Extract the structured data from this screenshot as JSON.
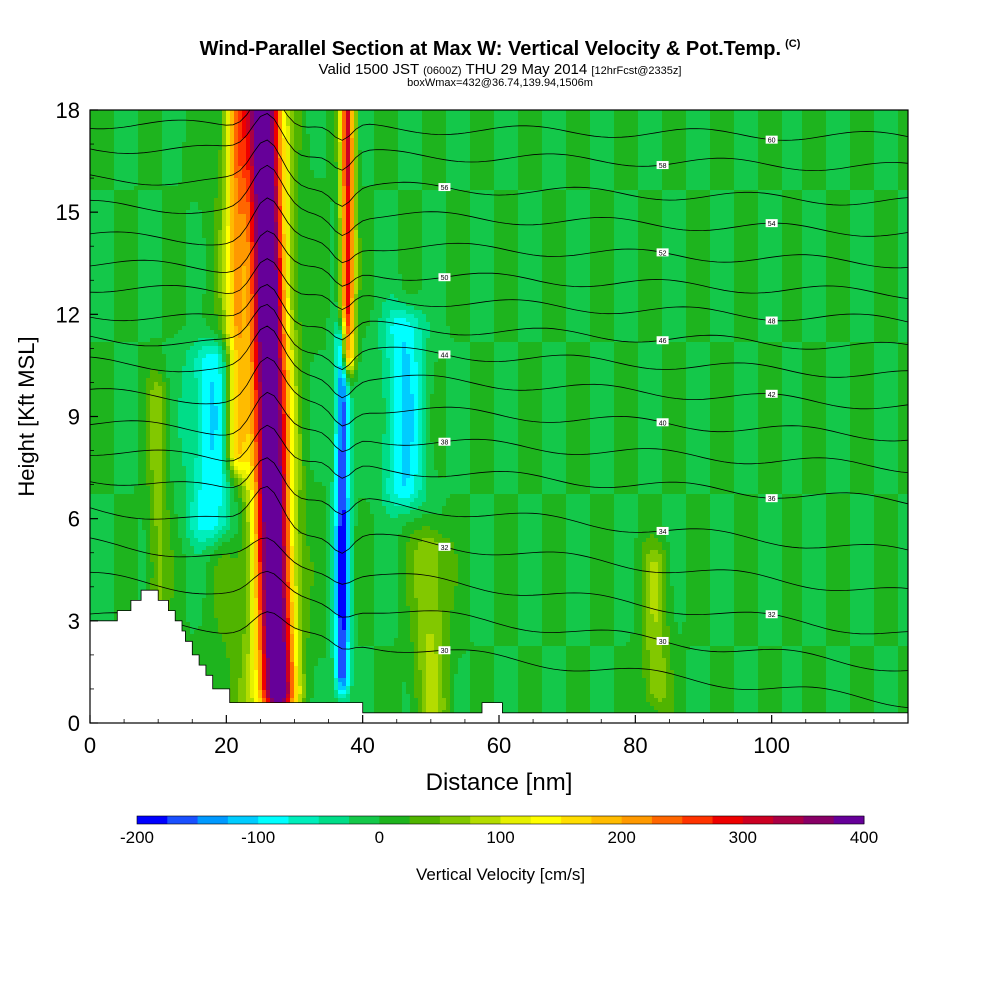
{
  "title": {
    "main": "Wind-Parallel Section at Max W: Vertical Velocity & Pot.Temp.",
    "copyright": "(C)",
    "valid_prefix": "Valid 1500 JST",
    "valid_z": "(0600Z)",
    "valid_date": "THU 29 May 2014",
    "forecast": "[12hrFcst@2335z]",
    "box_info": "boxWmax=432@36.74,139.94,1506m"
  },
  "chart_data": {
    "type": "heatmap",
    "xlabel": "Distance [nm]",
    "ylabel": "Height [Kft MSL]",
    "xlim": [
      0,
      120
    ],
    "ylim": [
      0,
      18
    ],
    "xticks": [
      0,
      20,
      40,
      60,
      80,
      100
    ],
    "yticks": [
      0,
      3,
      6,
      9,
      12,
      15,
      18
    ],
    "grid": false,
    "colorbar": {
      "label": "Vertical Velocity [cm/s]",
      "placement": "bottom",
      "ticks": [
        -200,
        -100,
        0,
        100,
        200,
        300,
        400
      ],
      "bins": [
        -200,
        -175,
        -150,
        -125,
        -100,
        -75,
        -50,
        -25,
        0,
        25,
        50,
        75,
        100,
        125,
        150,
        175,
        200,
        225,
        250,
        275,
        300,
        325,
        350,
        375,
        400
      ],
      "colors": [
        "#0000ff",
        "#1a50ff",
        "#0099ff",
        "#00ccff",
        "#00ffff",
        "#00eebb",
        "#00dd88",
        "#14c84a",
        "#1eb41e",
        "#50b400",
        "#82c800",
        "#b4dc00",
        "#e6f000",
        "#ffff00",
        "#ffdd00",
        "#ffbb00",
        "#ff9900",
        "#ff6600",
        "#ff3300",
        "#ee0000",
        "#cc0022",
        "#aa0044",
        "#880066",
        "#660099"
      ]
    },
    "w_features": [
      {
        "x": 26.5,
        "half_width": 2.6,
        "z_min": 1.0,
        "z_max": 18.0,
        "peak": 432,
        "lean": -0.12
      },
      {
        "x": 37.8,
        "half_width": 1.0,
        "z_min": 11.0,
        "z_max": 18.0,
        "peak": 300,
        "lean": 0.0
      },
      {
        "x": 37.0,
        "half_width": 1.1,
        "z_min": 1.5,
        "z_max": 11.0,
        "peak": -180,
        "lean": 0.0
      },
      {
        "x": 18.0,
        "half_width": 3.5,
        "z_min": 6.0,
        "z_max": 10.5,
        "peak": -110,
        "lean": 0.0
      },
      {
        "x": 46.0,
        "half_width": 3.0,
        "z_min": 7.0,
        "z_max": 11.5,
        "peak": -100,
        "lean": 0.0
      },
      {
        "x": 21.5,
        "half_width": 1.6,
        "z_min": 8.0,
        "z_max": 18.0,
        "peak": 160,
        "lean": 0.0
      },
      {
        "x": 10.0,
        "half_width": 1.5,
        "z_min": 3.5,
        "z_max": 9.5,
        "peak": 60,
        "lean": 0.0
      },
      {
        "x": 50.0,
        "half_width": 2.5,
        "z_min": 0.5,
        "z_max": 5.0,
        "peak": 80,
        "lean": 0.0
      },
      {
        "x": 83.0,
        "half_width": 2.0,
        "z_min": 1.0,
        "z_max": 4.5,
        "peak": 70,
        "lean": 0.0
      },
      {
        "x": 24.0,
        "half_width": 6.0,
        "z_min": 0.5,
        "z_max": 18.0,
        "peak": 40,
        "lean": 0.0
      }
    ],
    "terrain": {
      "x": [
        0,
        4,
        4,
        6,
        6,
        7.5,
        7.5,
        10,
        10,
        11.5,
        11.5,
        12.5,
        12.5,
        13.5,
        13.5,
        14,
        14,
        15,
        15,
        16,
        16,
        17,
        17,
        18,
        18,
        20.5,
        20.5,
        40,
        40,
        57.5,
        57.5,
        60.5,
        60.5,
        120
      ],
      "z": [
        3.0,
        3.0,
        3.3,
        3.3,
        3.6,
        3.6,
        3.9,
        3.9,
        3.6,
        3.6,
        3.3,
        3.3,
        3.0,
        3.0,
        2.7,
        2.7,
        2.4,
        2.4,
        2.0,
        2.0,
        1.7,
        1.7,
        1.4,
        1.4,
        1.0,
        1.0,
        0.6,
        0.6,
        0.3,
        0.3,
        0.6,
        0.6,
        0.3,
        0.3
      ]
    },
    "isentropes": [
      {
        "z_left": 3.2,
        "z_right": 0.6,
        "label": "30"
      },
      {
        "z_left": 4.3,
        "z_right": 1.6,
        "label": "30"
      },
      {
        "z_left": 5.3,
        "z_right": 2.6,
        "label": "32"
      },
      {
        "z_left": 6.3,
        "z_right": 3.8,
        "label": "32"
      },
      {
        "z_left": 7.2,
        "z_right": 5.0,
        "label": "34"
      },
      {
        "z_left": 8.0,
        "z_right": 6.5,
        "label": "36"
      },
      {
        "z_left": 8.8,
        "z_right": 7.5,
        "label": "38"
      },
      {
        "z_left": 9.7,
        "z_right": 8.4,
        "label": "40"
      },
      {
        "z_left": 10.6,
        "z_right": 9.3,
        "label": "42"
      },
      {
        "z_left": 11.3,
        "z_right": 10.2,
        "label": "44"
      },
      {
        "z_left": 12.0,
        "z_right": 11.0,
        "label": "46"
      },
      {
        "z_left": 12.8,
        "z_right": 11.8,
        "label": "48"
      },
      {
        "z_left": 13.5,
        "z_right": 12.6,
        "label": "50"
      },
      {
        "z_left": 14.3,
        "z_right": 13.5,
        "label": "52"
      },
      {
        "z_left": 15.2,
        "z_right": 14.4,
        "label": "54"
      },
      {
        "z_left": 16.0,
        "z_right": 15.3,
        "label": "56"
      },
      {
        "z_left": 16.9,
        "z_right": 16.3,
        "label": "58"
      },
      {
        "z_left": 17.6,
        "z_right": 17.2,
        "label": "60"
      }
    ]
  }
}
